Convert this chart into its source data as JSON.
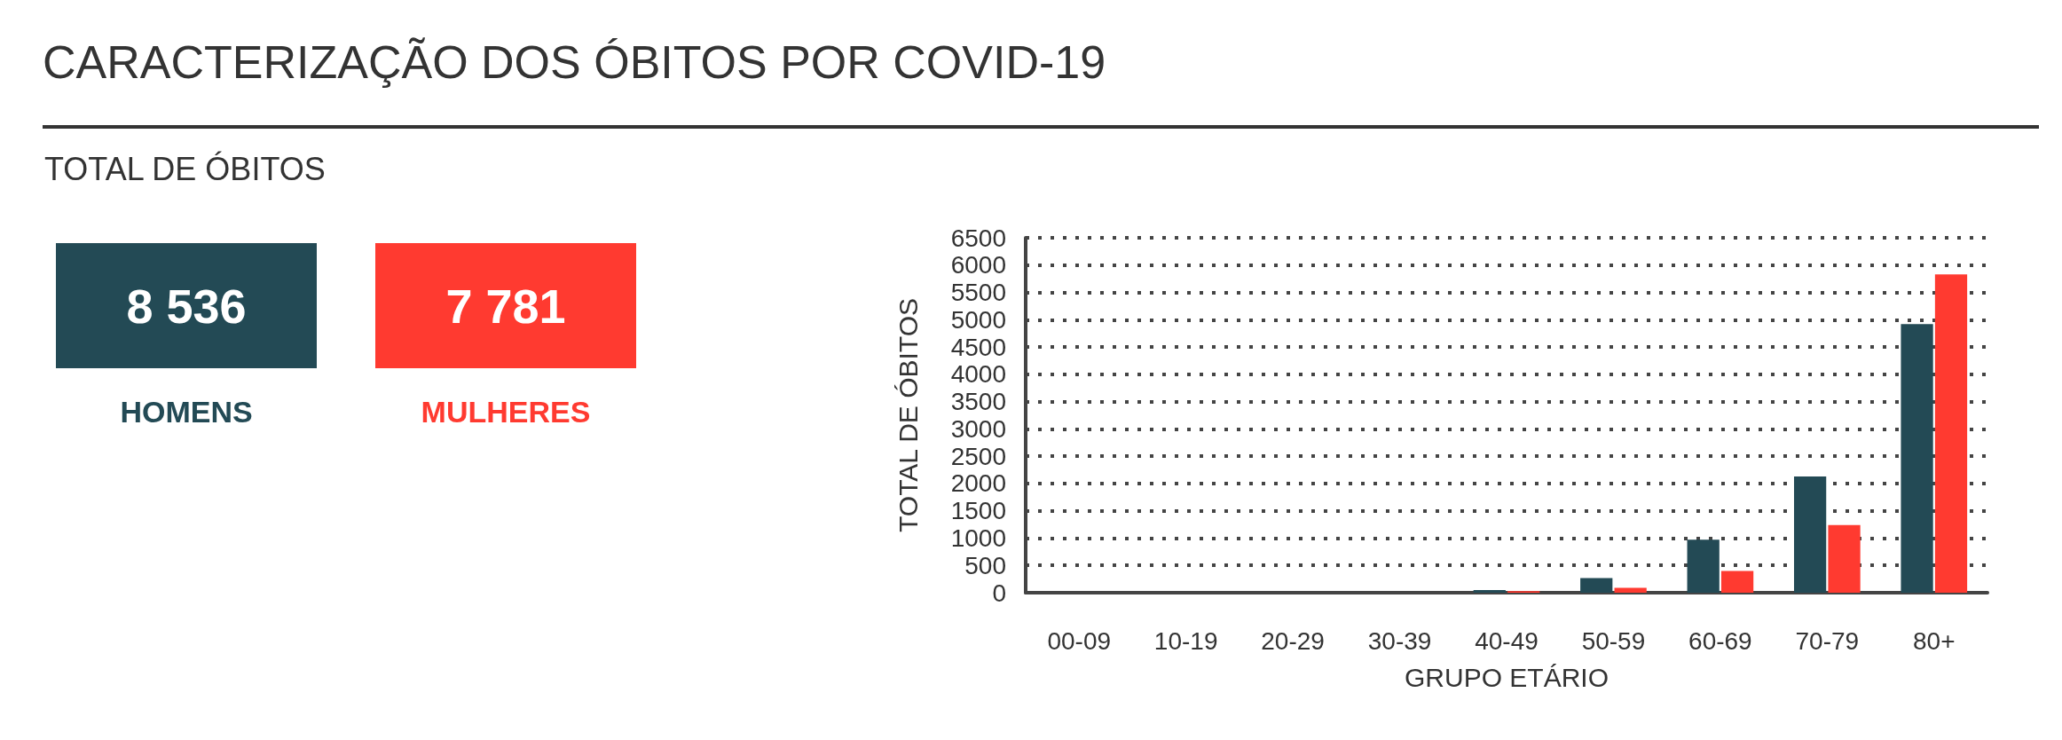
{
  "chart_data": [
    {
      "type": "other",
      "title": "CARACTERIZAÇÃO DOS ÓBITOS POR COVID-19",
      "subtitle": "TOTAL DE ÓBITOS",
      "categories": [
        "HOMENS",
        "MULHERES"
      ],
      "value_labels": [
        "8 536",
        "7 781"
      ],
      "colors": [
        "#234a55",
        "#ff3a30"
      ]
    },
    {
      "type": "bar",
      "categories": [
        "00-09",
        "10-19",
        "20-29",
        "30-39",
        "40-49",
        "50-59",
        "60-69",
        "70-79",
        "80+"
      ],
      "series": [
        {
          "color": "#234a55",
          "values": [
            0,
            0,
            0,
            0,
            50,
            270,
            970,
            2130,
            4920
          ]
        },
        {
          "color": "#ff3a30",
          "values": [
            0,
            0,
            0,
            0,
            30,
            90,
            400,
            1240,
            5830
          ]
        }
      ],
      "xlabel": "GRUPO ETÁRIO",
      "ylabel": "TOTAL DE ÓBITOS",
      "ylim": [
        0,
        6500
      ],
      "yticks": [
        0,
        500,
        1000,
        1500,
        2000,
        2500,
        3000,
        3500,
        4000,
        4500,
        5000,
        5500,
        6000,
        6500
      ],
      "grid": "y"
    }
  ]
}
